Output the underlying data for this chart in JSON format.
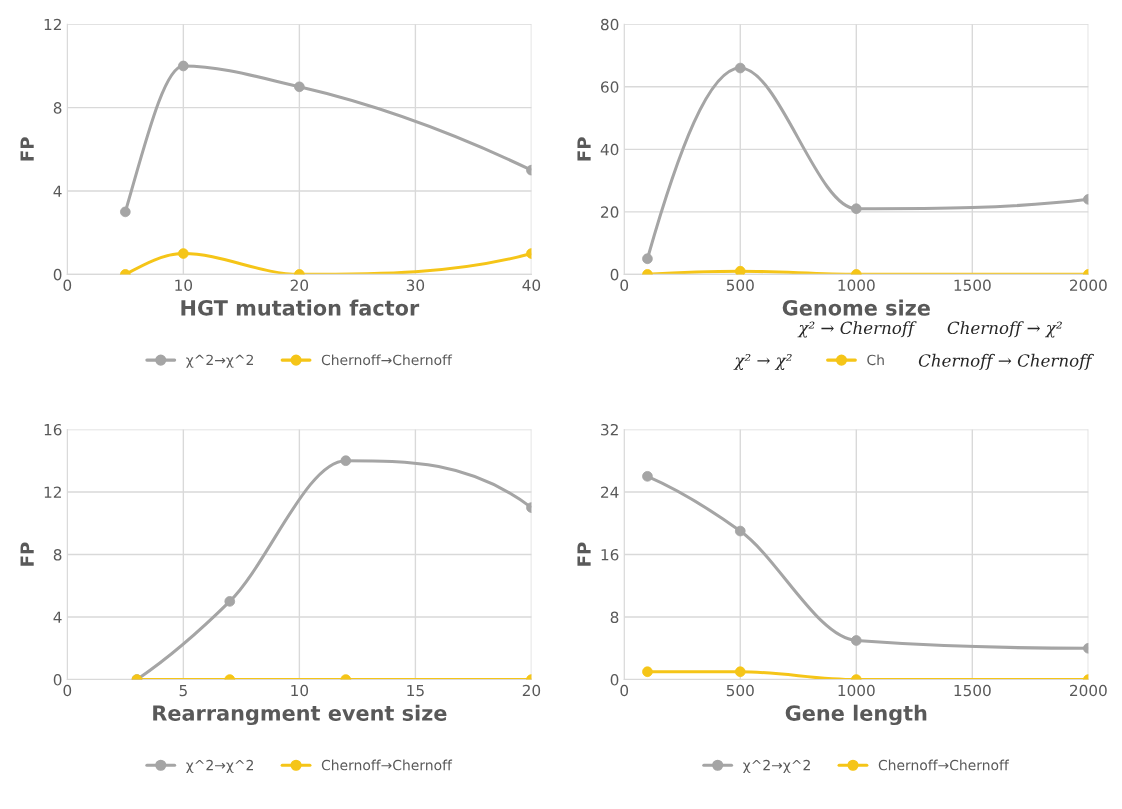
{
  "chart_data": [
    {
      "type": "line",
      "xlabel": "HGT mutation factor",
      "ylabel": "FP",
      "xlim": [
        0,
        40
      ],
      "xticks": [
        0,
        10,
        20,
        30,
        40
      ],
      "ylim": [
        0,
        12
      ],
      "yticks": [
        0,
        4,
        8,
        12
      ],
      "grid": true,
      "legend": "bottom",
      "marker": "circle",
      "x": [
        5,
        10,
        20,
        40
      ],
      "series": [
        {
          "name": "χ^2→χ^2",
          "color": "#a5a5a5",
          "values": [
            3,
            10,
            9,
            5
          ]
        },
        {
          "name": "Chernoff→Chernoff",
          "color": "#f5c518",
          "values": [
            0,
            1,
            0,
            1
          ]
        }
      ]
    },
    {
      "type": "line",
      "xlabel": "Genome size",
      "ylabel": "FP",
      "xlim": [
        0,
        2000
      ],
      "xticks": [
        0,
        500,
        1000,
        1500,
        2000
      ],
      "ylim": [
        0,
        80
      ],
      "yticks": [
        0,
        20,
        40,
        60,
        80
      ],
      "grid": true,
      "legend": "bottom",
      "marker": "circle",
      "x": [
        100,
        500,
        1000,
        2000
      ],
      "series": [
        {
          "color": "#a5a5a5",
          "values": [
            5,
            66,
            21,
            24
          ]
        },
        {
          "name": "Ch",
          "color": "#f5c518",
          "values": [
            0,
            1,
            0,
            0
          ]
        }
      ],
      "annotations": [
        "χ² → Chernoff",
        "Chernoff → χ²",
        "χ² → χ²",
        "Chernoff → Chernoff"
      ]
    },
    {
      "type": "line",
      "xlabel": "Rearrangment event size",
      "ylabel": "FP",
      "xlim": [
        0,
        20
      ],
      "xticks": [
        0,
        5,
        10,
        15,
        20
      ],
      "ylim": [
        0,
        16
      ],
      "yticks": [
        0,
        4,
        8,
        12,
        16
      ],
      "grid": true,
      "legend": "bottom",
      "marker": "circle",
      "x": [
        3,
        7,
        12,
        20
      ],
      "series": [
        {
          "name": "χ^2→χ^2",
          "color": "#a5a5a5",
          "values": [
            0,
            5,
            14,
            11
          ]
        },
        {
          "name": "Chernoff→Chernoff",
          "color": "#f5c518",
          "values": [
            0,
            0,
            0,
            0
          ]
        }
      ]
    },
    {
      "type": "line",
      "xlabel": "Gene length",
      "ylabel": "FP",
      "xlim": [
        0,
        2000
      ],
      "xticks": [
        0,
        500,
        1000,
        1500,
        2000
      ],
      "ylim": [
        0,
        32
      ],
      "yticks": [
        0,
        8,
        16,
        24,
        32
      ],
      "grid": true,
      "legend": "bottom",
      "marker": "circle",
      "x": [
        100,
        500,
        1000,
        2000
      ],
      "series": [
        {
          "name": "χ^2→χ^2",
          "color": "#a5a5a5",
          "values": [
            26,
            19,
            5,
            4
          ]
        },
        {
          "name": "Chernoff→Chernoff",
          "color": "#f5c518",
          "values": [
            1,
            1,
            0,
            0
          ]
        }
      ]
    }
  ]
}
